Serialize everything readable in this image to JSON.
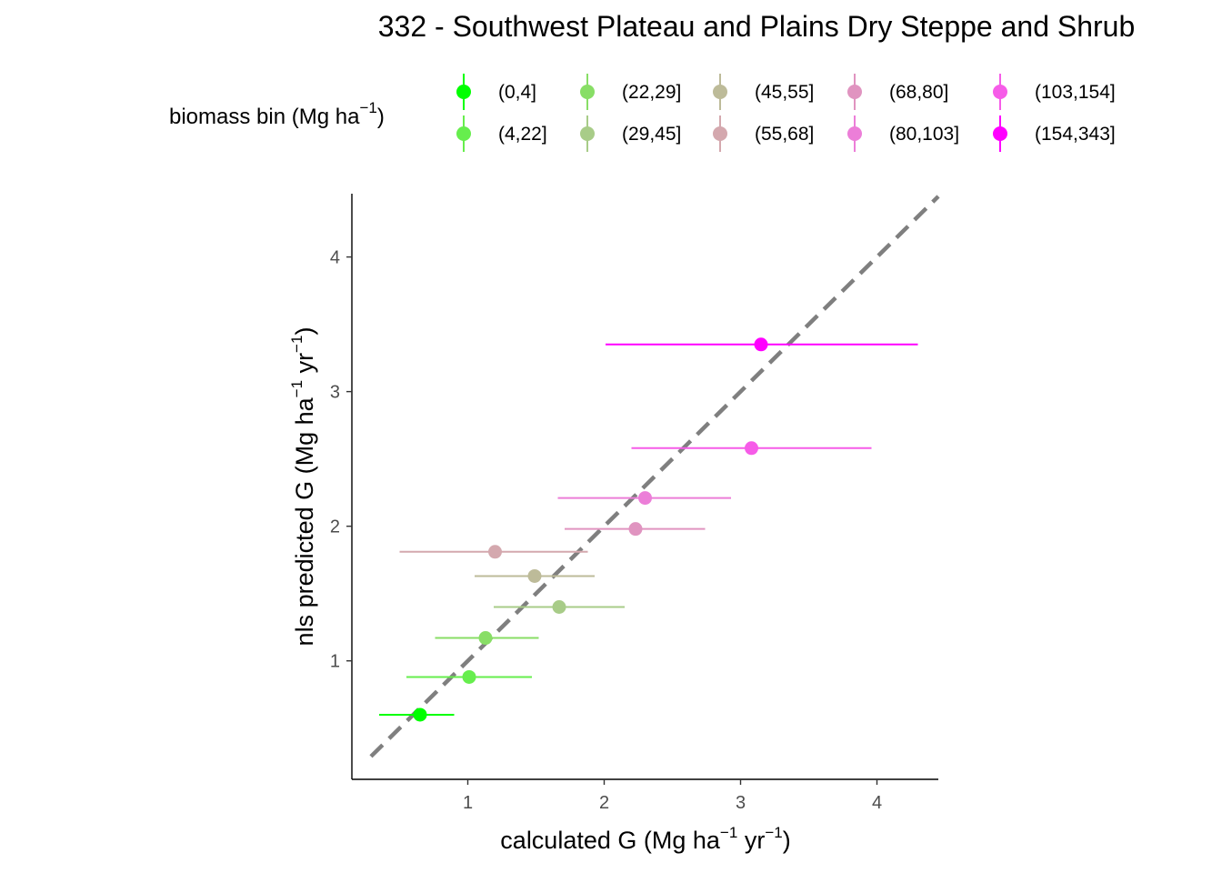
{
  "chart_data": {
    "type": "scatter",
    "title": "332 - Southwest Plateau and Plains Dry Steppe and Shrub",
    "xlabel": {
      "prefix": "calculated G (Mg ha",
      "sup1": "−1",
      "middle": " yr",
      "sup2": "−1",
      "suffix": ")"
    },
    "ylabel": {
      "prefix": "nls predicted G (Mg ha",
      "sup1": "−1",
      "middle": " yr",
      "sup2": "−1",
      "suffix": ")"
    },
    "legend": {
      "title_prefix": "biomass bin (Mg ha",
      "title_sup": "−1",
      "title_suffix": ")",
      "placement": "top"
    },
    "xlim": [
      0.15,
      4.45
    ],
    "ylim": [
      0.12,
      4.47
    ],
    "x_ticks": [
      1,
      2,
      3,
      4
    ],
    "x_tick_labels": [
      "1",
      "2",
      "3",
      "4"
    ],
    "y_ticks": [
      1,
      2,
      3,
      4
    ],
    "y_tick_labels": [
      "1",
      "2",
      "3",
      "4"
    ],
    "grid": false,
    "reference_line": {
      "type": "identity",
      "style": "dashed",
      "color": "#7f7f7f"
    },
    "series": [
      {
        "name": "(0,4]",
        "color": "#00FF00",
        "x": 0.65,
        "y": 0.6,
        "xmin": 0.35,
        "xmax": 0.9
      },
      {
        "name": "(4,22]",
        "color": "#66EE4D",
        "x": 1.01,
        "y": 0.88,
        "xmin": 0.55,
        "xmax": 1.47
      },
      {
        "name": "(22,29]",
        "color": "#88DE66",
        "x": 1.13,
        "y": 1.17,
        "xmin": 0.76,
        "xmax": 1.52
      },
      {
        "name": "(29,45]",
        "color": "#A8CC88",
        "x": 1.67,
        "y": 1.4,
        "xmin": 1.19,
        "xmax": 2.15
      },
      {
        "name": "(45,55]",
        "color": "#BDBB99",
        "x": 1.49,
        "y": 1.63,
        "xmin": 1.05,
        "xmax": 1.93
      },
      {
        "name": "(55,68]",
        "color": "#D4A8AE",
        "x": 1.2,
        "y": 1.81,
        "xmin": 0.5,
        "xmax": 1.88
      },
      {
        "name": "(68,80]",
        "color": "#E094C0",
        "x": 2.23,
        "y": 1.98,
        "xmin": 1.71,
        "xmax": 2.74
      },
      {
        "name": "(80,103]",
        "color": "#EC7ED8",
        "x": 2.3,
        "y": 2.21,
        "xmin": 1.66,
        "xmax": 2.93
      },
      {
        "name": "(103,154]",
        "color": "#F65CE8",
        "x": 3.08,
        "y": 2.58,
        "xmin": 2.2,
        "xmax": 3.96
      },
      {
        "name": "(154,343]",
        "color": "#FF00FF",
        "x": 3.15,
        "y": 3.35,
        "xmin": 2.01,
        "xmax": 4.3
      }
    ]
  }
}
